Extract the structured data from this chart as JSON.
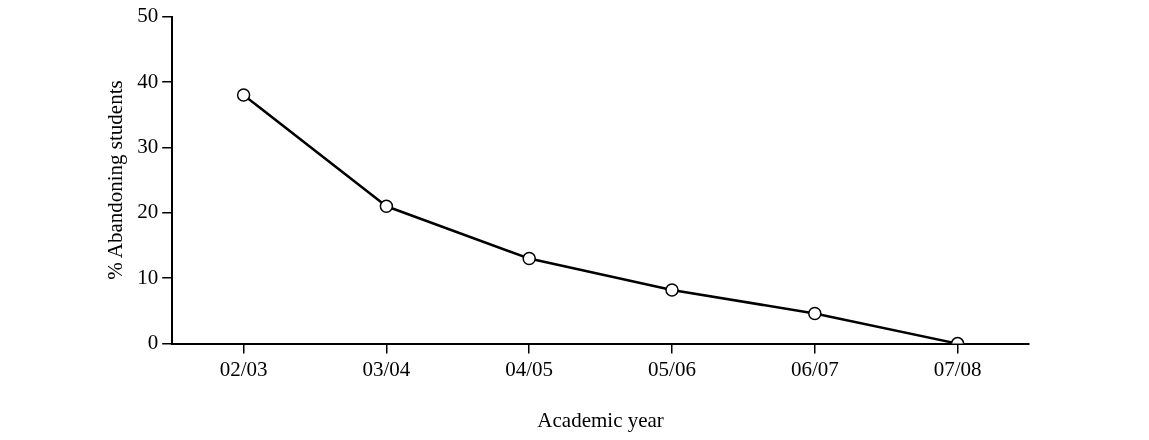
{
  "chart_data": {
    "type": "line",
    "xlabel": "Academic year",
    "ylabel": "% Abandoning students",
    "categories": [
      "02/03",
      "03/04",
      "04/05",
      "05/06",
      "06/07",
      "07/08"
    ],
    "series": [
      {
        "color": "#000000",
        "values": [
          38,
          21,
          13,
          8.2,
          4.6,
          0
        ]
      }
    ],
    "ylim": [
      0,
      50
    ],
    "yticks": [
      0,
      10,
      20,
      30,
      40,
      50
    ],
    "grid": false,
    "legend": false,
    "marker": "circle",
    "line_style": "solid"
  }
}
